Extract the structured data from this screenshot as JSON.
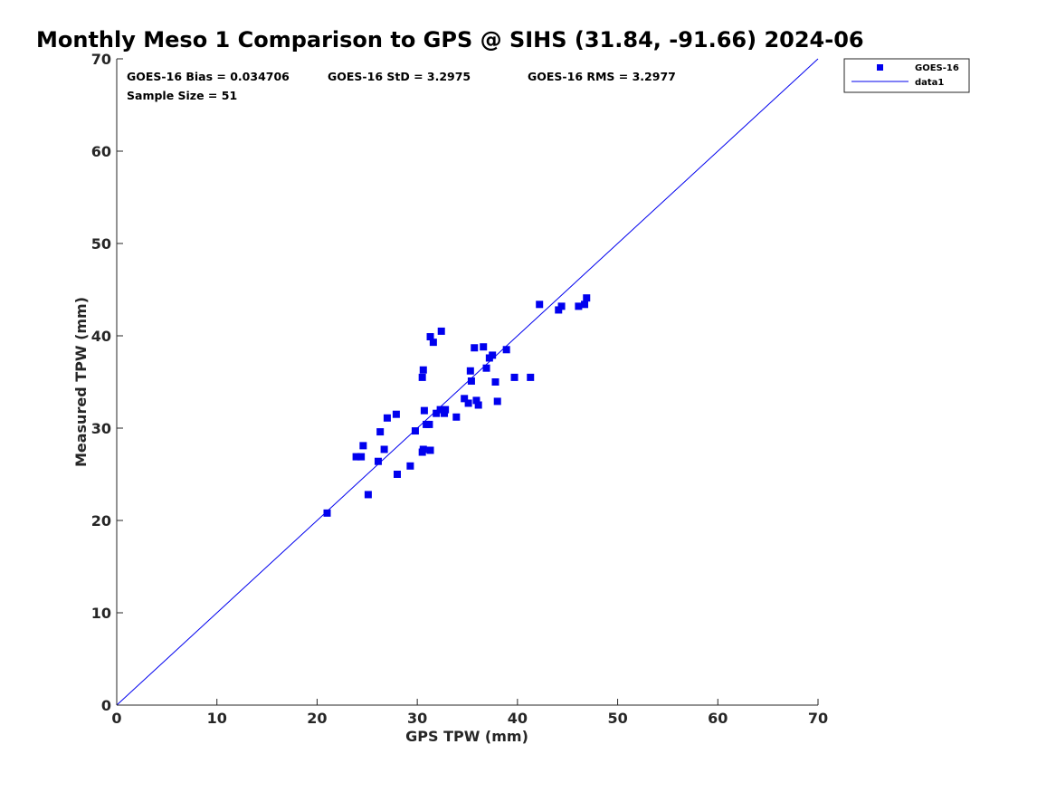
{
  "chart_data": {
    "type": "scatter",
    "title": "Monthly Meso 1 Comparison to GPS @ SIHS (31.84, -91.66) 2024-06",
    "xlabel": "GPS TPW (mm)",
    "ylabel": "Measured TPW (mm)",
    "xlim": [
      0,
      70
    ],
    "ylim": [
      0,
      70
    ],
    "xticks": [
      "0",
      "10",
      "20",
      "30",
      "40",
      "50",
      "60",
      "70"
    ],
    "yticks": [
      "0",
      "10",
      "20",
      "30",
      "40",
      "50",
      "60",
      "70"
    ],
    "grid": false,
    "legend_position": "top-right",
    "stats": {
      "bias": "GOES-16 Bias = 0.034706",
      "std": "GOES-16 StD = 3.2975",
      "rms": "GOES-16 RMS = 3.2977",
      "sample_size": "Sample Size = 51"
    },
    "series": [
      {
        "name": "GOES-16",
        "kind": "scatter",
        "marker": "square",
        "color": "#0000ee",
        "points": [
          [
            21.0,
            20.8
          ],
          [
            23.9,
            26.9
          ],
          [
            24.4,
            26.9
          ],
          [
            24.6,
            28.1
          ],
          [
            25.1,
            22.8
          ],
          [
            26.1,
            26.4
          ],
          [
            26.3,
            29.6
          ],
          [
            26.7,
            27.7
          ],
          [
            27.0,
            31.1
          ],
          [
            27.9,
            31.5
          ],
          [
            28.0,
            25.0
          ],
          [
            29.3,
            25.9
          ],
          [
            29.8,
            29.7
          ],
          [
            30.5,
            27.4
          ],
          [
            30.5,
            35.5
          ],
          [
            30.6,
            36.3
          ],
          [
            30.6,
            27.7
          ],
          [
            30.7,
            31.9
          ],
          [
            30.9,
            30.4
          ],
          [
            31.2,
            30.4
          ],
          [
            31.3,
            39.9
          ],
          [
            31.3,
            27.6
          ],
          [
            31.6,
            39.3
          ],
          [
            31.9,
            31.6
          ],
          [
            32.3,
            32.0
          ],
          [
            32.4,
            40.5
          ],
          [
            32.7,
            31.6
          ],
          [
            32.8,
            32.0
          ],
          [
            33.9,
            31.2
          ],
          [
            34.7,
            33.2
          ],
          [
            35.1,
            32.7
          ],
          [
            35.3,
            36.2
          ],
          [
            35.4,
            35.1
          ],
          [
            35.7,
            38.7
          ],
          [
            35.9,
            33.0
          ],
          [
            36.1,
            32.5
          ],
          [
            36.6,
            38.8
          ],
          [
            36.9,
            36.5
          ],
          [
            37.2,
            37.6
          ],
          [
            37.5,
            37.9
          ],
          [
            37.8,
            35.0
          ],
          [
            38.0,
            32.9
          ],
          [
            38.9,
            38.5
          ],
          [
            39.7,
            35.5
          ],
          [
            41.3,
            35.5
          ],
          [
            42.2,
            43.4
          ],
          [
            44.1,
            42.8
          ],
          [
            44.4,
            43.2
          ],
          [
            46.1,
            43.2
          ],
          [
            46.7,
            43.4
          ],
          [
            46.9,
            44.1
          ]
        ]
      },
      {
        "name": "data1",
        "kind": "line",
        "color": "#0000ee",
        "points": [
          [
            0,
            0
          ],
          [
            70,
            70
          ]
        ]
      }
    ]
  }
}
